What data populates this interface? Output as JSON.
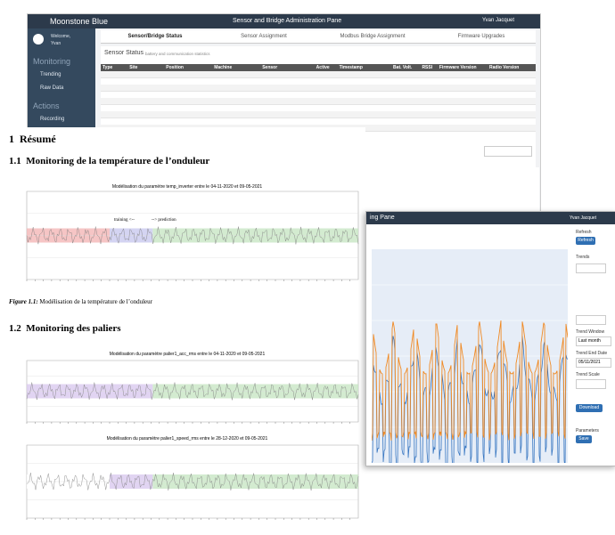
{
  "app_top": {
    "brand": "Moonstone Blue",
    "title": "Sensor and Bridge Administration Pane",
    "user": "Yvan Jacquet",
    "sidebar": {
      "welcome": "Welcome,",
      "user": "Yvan",
      "sections": [
        {
          "title": "Monitoring",
          "items": [
            "Trending",
            "Raw Data"
          ]
        },
        {
          "title": "Actions",
          "items": [
            "Recording"
          ]
        }
      ]
    },
    "tabs": [
      "Sensor/Bridge Status",
      "Sensor Assignment",
      "Modbus Bridge Assignment",
      "Firmware Upgrades"
    ],
    "panel": {
      "title": "Sensor Status",
      "subtitle": "battery and communication statistics"
    },
    "table_headers": [
      "Type",
      "Site",
      "Position",
      "Machine",
      "Sensor",
      "Active",
      "Timestamp",
      "Bat. Volt.",
      "RSSI",
      "Firmware Version",
      "Radio Version"
    ]
  },
  "document": {
    "section": {
      "number": "1",
      "title": "Résumé"
    },
    "subsection_1": {
      "number": "1.1",
      "title": "Monitoring de la température de l’onduleur",
      "chart_title": "Modélisation du paramètre temp_inverter entre le 04-11-2020 et 09-05-2021",
      "caption_label": "Figure 1.1:",
      "caption": "Modélisation de la température de l’onduleur"
    },
    "subsection_2": {
      "number": "1.2",
      "title": "Monitoring des paliers",
      "chart_titles": [
        "Modélisation du paramètre palier1_acc_rms entre le 04-11-2020 et 09-05-2021",
        "Modélisation du paramètre palier1_speed_rms entre le 28-12-2020 et 09-05-2021"
      ]
    },
    "annotations": [
      "training <--",
      "--> prediction"
    ]
  },
  "app_right": {
    "title": "ing Pane",
    "user": "Yvan Jacquet",
    "controls": {
      "refresh_label": "Refresh",
      "refresh_button": "Refresh",
      "trends": "Trends",
      "trend_window": "Trend Window",
      "window_value": "Last month",
      "trend_end_date": "Trend End Date",
      "end_date_value": "05/11/2021",
      "trend_scale": "Trend Scale",
      "download": "Download",
      "parameters": "Parameters",
      "save": "Save"
    }
  }
}
